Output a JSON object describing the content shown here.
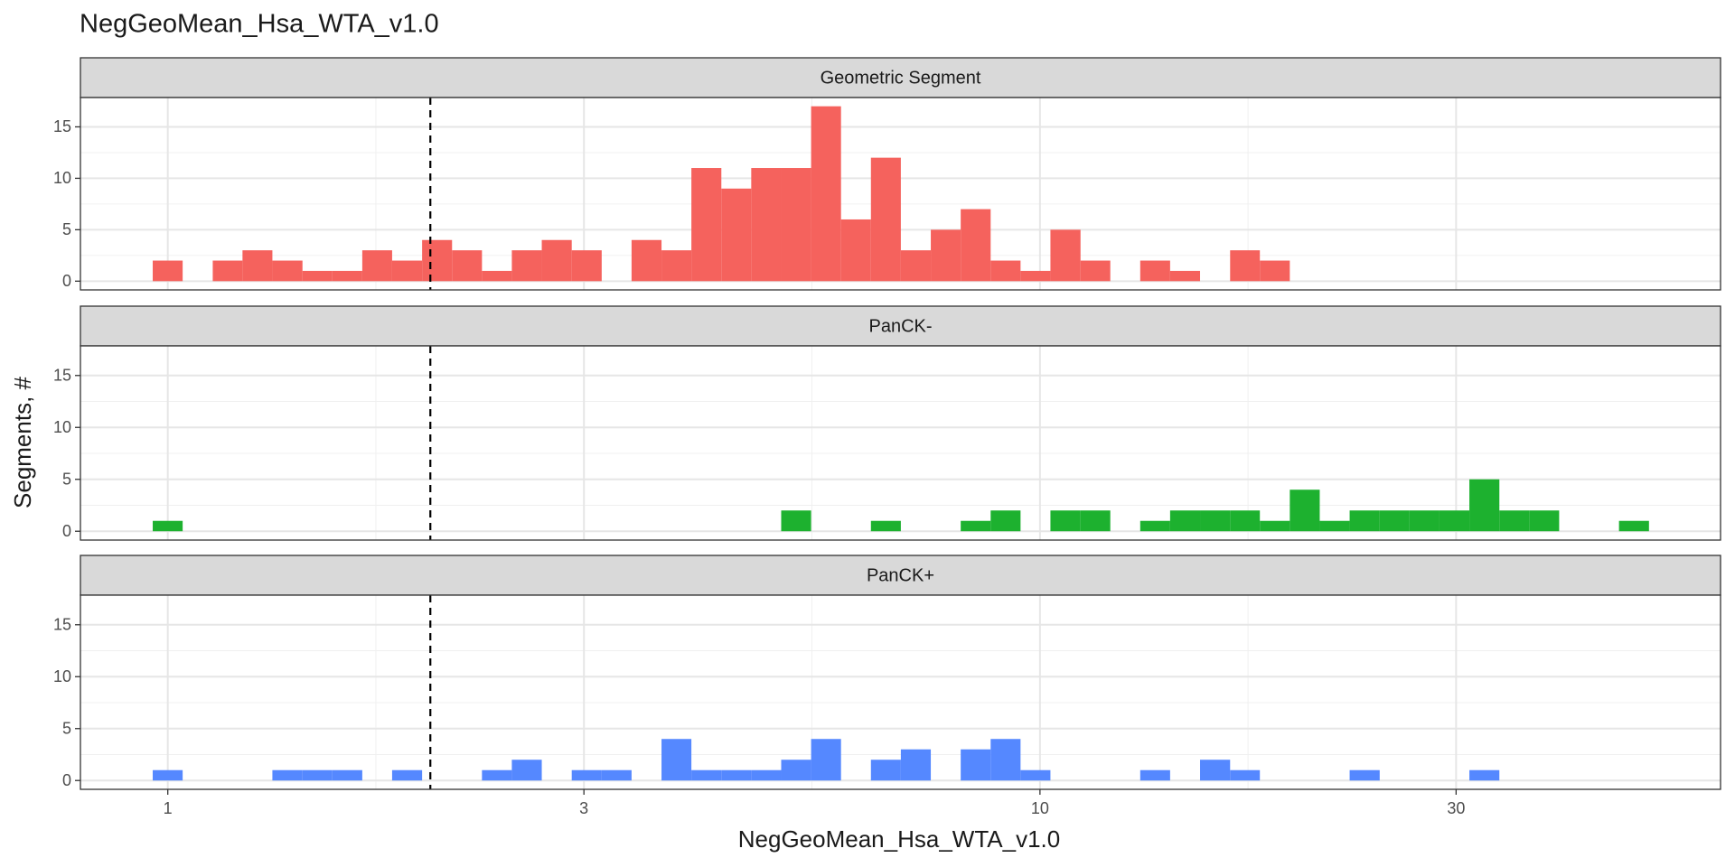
{
  "chart_data": {
    "type": "histogram",
    "title": "NegGeoMean_Hsa_WTA_v1.0",
    "xlabel": "NegGeoMean_Hsa_WTA_v1.0",
    "ylabel": "Segments, #",
    "log_x": true,
    "grid": true,
    "xlim": [
      0.794,
      60.3
    ],
    "xticks": [
      1,
      3,
      10,
      30
    ],
    "ylim": [
      -0.85,
      17.85
    ],
    "yticks": [
      0,
      5,
      10,
      15
    ],
    "vline": 2.0,
    "bins": [
      0.961,
      1.04,
      1.126,
      1.218,
      1.318,
      1.427,
      1.544,
      1.671,
      1.808,
      1.957,
      2.118,
      2.292,
      2.48,
      2.684,
      2.905,
      3.144,
      3.402,
      3.682,
      3.984,
      4.312,
      4.666,
      5.05,
      5.465,
      5.914,
      6.4,
      6.926,
      7.496,
      8.112,
      8.779,
      9.5,
      10.28,
      11.13,
      12.04,
      13.03,
      14.1,
      15.26,
      16.52,
      17.87,
      19.34,
      20.93,
      22.65,
      24.52,
      26.53,
      28.71,
      31.07,
      33.63,
      36.39,
      39.38,
      42.62,
      46.12,
      49.92
    ],
    "series": [
      {
        "name": "Geometric Segment",
        "color": "#F5625D",
        "values": [
          2,
          0,
          2,
          3,
          2,
          1,
          1,
          3,
          2,
          4,
          3,
          1,
          3,
          4,
          3,
          0,
          4,
          3,
          11,
          9,
          11,
          11,
          17,
          6,
          12,
          3,
          5,
          7,
          2,
          1,
          5,
          2,
          0,
          2,
          1,
          0,
          3,
          2,
          0,
          0,
          0,
          0,
          0,
          0,
          0,
          0,
          0,
          0,
          0,
          0
        ]
      },
      {
        "name": "PanCK-",
        "color": "#1DB12F",
        "values": [
          1,
          0,
          0,
          0,
          0,
          0,
          0,
          0,
          0,
          0,
          0,
          0,
          0,
          0,
          0,
          0,
          0,
          0,
          0,
          0,
          0,
          2,
          0,
          0,
          1,
          0,
          0,
          1,
          2,
          0,
          2,
          2,
          0,
          1,
          2,
          2,
          2,
          1,
          4,
          1,
          2,
          2,
          2,
          2,
          5,
          2,
          2,
          0,
          0,
          1
        ]
      },
      {
        "name": "PanCK+",
        "color": "#5588FF",
        "values": [
          1,
          0,
          0,
          0,
          1,
          1,
          1,
          0,
          1,
          0,
          0,
          1,
          2,
          0,
          1,
          1,
          0,
          4,
          1,
          1,
          1,
          2,
          4,
          0,
          2,
          3,
          0,
          3,
          4,
          1,
          0,
          0,
          0,
          1,
          0,
          2,
          1,
          0,
          0,
          0,
          1,
          0,
          0,
          0,
          1,
          0,
          0,
          0,
          0,
          0
        ]
      }
    ]
  }
}
